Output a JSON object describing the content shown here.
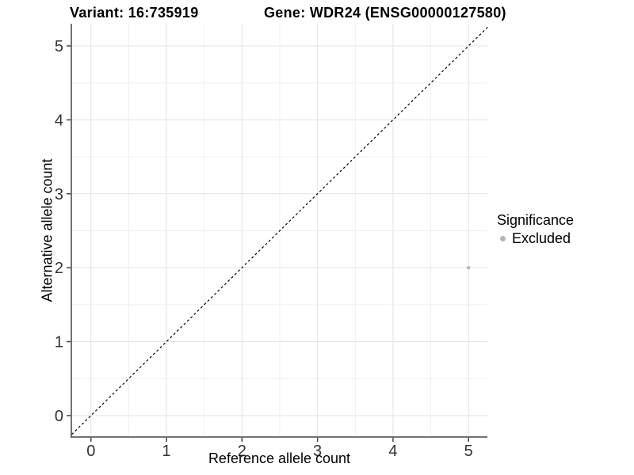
{
  "chart_data": {
    "type": "scatter",
    "title_left": "Variant: 16:735919",
    "title_right": "Gene: WDR24 (ENSG00000127580)",
    "xlabel": "Reference allele count",
    "ylabel": "Alternative allele count",
    "xlim": [
      -0.26,
      5.25
    ],
    "ylim": [
      -0.29,
      5.3
    ],
    "xticks": [
      0,
      1,
      2,
      3,
      4,
      5
    ],
    "yticks": [
      0,
      1,
      2,
      3,
      4,
      5
    ],
    "grid": "on",
    "minor_gridlines": true,
    "identity_line": {
      "slope": 1,
      "intercept": 0,
      "style": "dashed",
      "color": "#000000"
    },
    "series": [
      {
        "name": "Excluded",
        "color": "#b9b9b9",
        "marker": "circle",
        "points": [
          {
            "x": 5,
            "y": 2
          }
        ]
      }
    ],
    "legend": {
      "title": "Significance",
      "position": "right",
      "entries": [
        {
          "label": "Excluded",
          "color": "#b3b3b3",
          "marker": "circle"
        }
      ]
    }
  },
  "colors": {
    "background": "#ffffff",
    "grid_major": "#e3e3e3",
    "grid_minor": "#f0f0f0",
    "axis_line": "#444444",
    "tick_mark": "#444444",
    "tick_text": "#333333",
    "point": "#b9b9b9",
    "identity_line": "#000000"
  }
}
